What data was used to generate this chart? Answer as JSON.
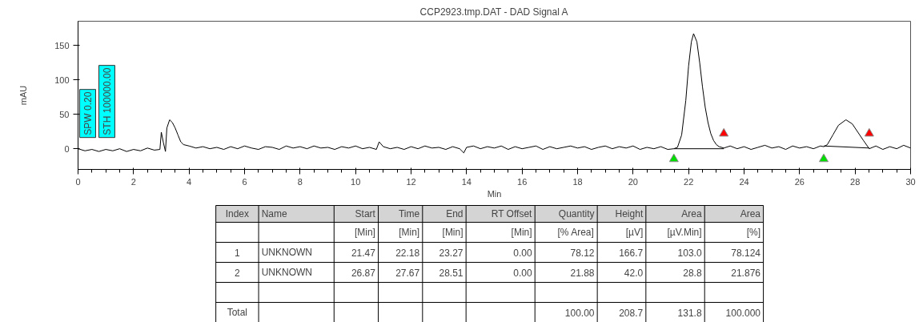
{
  "chart_data": {
    "type": "line",
    "title": "CCP2923.tmp.DAT - DAD Signal A",
    "xlabel": "Min",
    "ylabel": "mAU",
    "xlim": [
      0,
      30
    ],
    "ylim": [
      -30,
      185
    ],
    "xticks": [
      0,
      2,
      4,
      6,
      8,
      10,
      12,
      14,
      16,
      18,
      20,
      22,
      24,
      26,
      28,
      30
    ],
    "yticks": [
      0,
      50,
      100,
      150
    ],
    "grid": false,
    "marker": "none",
    "line_style": "solid",
    "series": [
      {
        "color": "#000000",
        "x": [
          0,
          0.25,
          0.5,
          0.75,
          1,
          1.25,
          1.5,
          1.75,
          2,
          2.25,
          2.5,
          2.75,
          2.95,
          3.0,
          3.08,
          3.15,
          3.2,
          3.3,
          3.4,
          3.5,
          3.6,
          3.7,
          3.8,
          4.0,
          4.25,
          4.5,
          4.75,
          5.0,
          5.25,
          5.5,
          5.75,
          6.0,
          6.25,
          6.5,
          6.75,
          7.0,
          7.25,
          7.5,
          7.75,
          8.0,
          8.25,
          8.5,
          8.75,
          9.0,
          9.25,
          9.5,
          9.75,
          10.0,
          10.25,
          10.5,
          10.75,
          10.85,
          11.0,
          11.25,
          11.5,
          11.75,
          12.0,
          12.25,
          12.5,
          12.75,
          13.0,
          13.25,
          13.5,
          13.75,
          13.9,
          14.0,
          14.25,
          14.5,
          14.75,
          15.0,
          15.25,
          15.5,
          15.75,
          16.0,
          16.25,
          16.5,
          16.75,
          17.0,
          17.25,
          17.5,
          17.75,
          18.0,
          18.25,
          18.5,
          18.75,
          19.0,
          19.25,
          19.5,
          19.75,
          20.0,
          20.25,
          20.5,
          20.75,
          21.0,
          21.25,
          21.47,
          21.6,
          21.75,
          21.9,
          22.0,
          22.1,
          22.18,
          22.3,
          22.4,
          22.5,
          22.6,
          22.7,
          22.8,
          22.9,
          23.0,
          23.1,
          23.27,
          23.5,
          23.75,
          24.0,
          24.25,
          24.5,
          24.75,
          25.0,
          25.25,
          25.5,
          25.75,
          26.0,
          26.25,
          26.5,
          26.75,
          26.87,
          27.0,
          27.2,
          27.4,
          27.67,
          27.9,
          28.1,
          28.3,
          28.51,
          28.75,
          29.0,
          29.25,
          29.5,
          29.75,
          30.0
        ],
        "values": [
          0,
          -3,
          -1,
          -4,
          -1,
          -3,
          0,
          -4,
          -1,
          -3,
          1,
          -2,
          -1,
          24,
          8,
          -4,
          30,
          42,
          38,
          30,
          20,
          10,
          6,
          4,
          1,
          3,
          0,
          2,
          -1,
          3,
          0,
          4,
          1,
          -1,
          3,
          2,
          -1,
          4,
          1,
          3,
          0,
          4,
          1,
          2,
          -1,
          3,
          1,
          4,
          0,
          2,
          -1,
          10,
          3,
          0,
          2,
          -1,
          3,
          0,
          4,
          1,
          2,
          -1,
          3,
          0,
          -6,
          2,
          4,
          0,
          3,
          1,
          4,
          -1,
          3,
          0,
          2,
          4,
          -1,
          3,
          0,
          2,
          4,
          1,
          3,
          -1,
          2,
          4,
          0,
          3,
          1,
          4,
          -1,
          2,
          0,
          3,
          -1,
          0,
          2,
          20,
          70,
          120,
          155,
          167,
          155,
          125,
          90,
          60,
          38,
          22,
          12,
          6,
          3,
          1,
          4,
          0,
          3,
          -1,
          2,
          5,
          1,
          3,
          -1,
          4,
          1,
          3,
          0,
          4,
          3,
          6,
          20,
          34,
          42,
          36,
          24,
          12,
          0,
          4,
          -1,
          3,
          0,
          5,
          1
        ]
      },
      {
        "type": "line",
        "color": "#000000",
        "x": [
          21.47,
          23.27,
          25,
          26.87,
          28.51
        ],
        "values": [
          0,
          0,
          null,
          4,
          1
        ]
      },
      {
        "type": "scatter",
        "marker": "triangle",
        "color": "#00e000",
        "x": [
          21.47,
          26.87
        ],
        "values": [
          -15,
          -15
        ]
      },
      {
        "type": "scatter",
        "marker": "triangle",
        "color": "#ff0000",
        "x": [
          23.27,
          28.51
        ],
        "values": [
          22,
          22
        ]
      }
    ],
    "annotations": [
      {
        "text": "SPW 0.20",
        "x": 0,
        "y": 0
      },
      {
        "text": "STH 100000.00",
        "x": 0,
        "y": 0
      },
      "Index",
      "Name",
      "Start",
      "Time",
      "End",
      "RT Offset",
      "Quantity",
      "Height",
      "Area",
      "Area",
      null,
      null,
      "[Min]",
      "[Min]",
      "[Min]",
      "[Min]",
      "[% Area]",
      "[µV]",
      "[µV.Min]",
      "[%]",
      "1",
      "UNKNOWN",
      "21.47",
      "22.18",
      "23.27",
      "0.00",
      "78.12",
      "166.7",
      "103.0",
      "78.124",
      "2",
      "UNKNOWN",
      "26.87",
      "27.67",
      "28.51",
      "0.00",
      "21.88",
      "42.0",
      "28.8",
      "21.876",
      null,
      null,
      null,
      null,
      null,
      null,
      null,
      null,
      null,
      null,
      "Total",
      null,
      null,
      null,
      null,
      null,
      "100.00",
      "208.7",
      "131.8",
      "100.000"
    ]
  }
}
